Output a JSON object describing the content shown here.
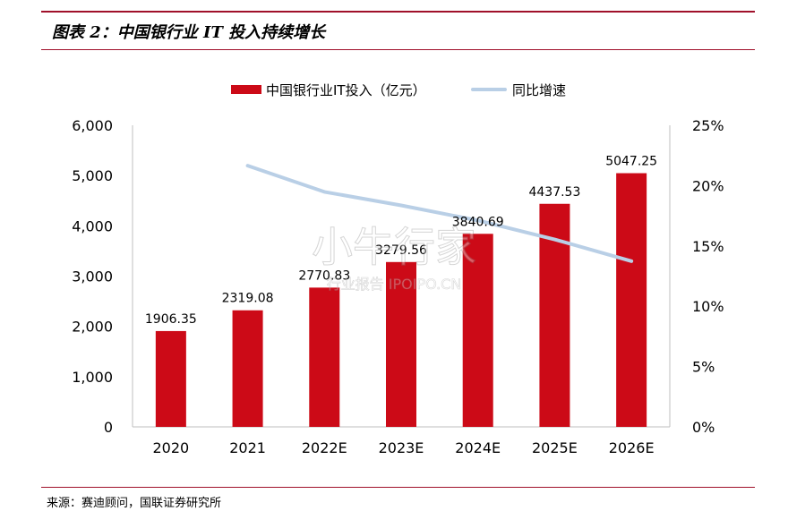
{
  "figure_title": "图表 2：中国银行业 IT 投入持续增长",
  "source_note": "来源：赛迪顾问，国联证券研究所",
  "watermark": {
    "main": "小牛行家",
    "sub": "行业报告 IPOIPO.CN"
  },
  "colors": {
    "bar": "#cc0a17",
    "line": "#b9cfe6",
    "rule": "#a0102a"
  },
  "chart_data": {
    "type": "bar",
    "categories": [
      "2020",
      "2021",
      "2022E",
      "2023E",
      "2024E",
      "2025E",
      "2026E"
    ],
    "series": [
      {
        "name": "中国银行业IT投入（亿元）",
        "type": "bar",
        "axis": "left",
        "values": [
          1906.35,
          2319.08,
          2770.83,
          3279.56,
          3840.69,
          4437.53,
          5047.25
        ],
        "data_labels": [
          "1906.35",
          "2319.08",
          "2770.83",
          "3279.56",
          "3840.69",
          "4437.53",
          "5047.25"
        ]
      },
      {
        "name": "同比增速",
        "type": "line",
        "axis": "right",
        "values": [
          null,
          0.2165,
          0.1948,
          0.1836,
          0.1711,
          0.1554,
          0.1374
        ]
      }
    ],
    "y_left": {
      "min": 0,
      "max": 6000,
      "ticks": [
        "0",
        "1,000",
        "2,000",
        "3,000",
        "4,000",
        "5,000",
        "6,000"
      ]
    },
    "y_right": {
      "min": 0,
      "max": 0.25,
      "ticks": [
        "0%",
        "5%",
        "10%",
        "15%",
        "20%",
        "25%"
      ]
    },
    "legend_position": "top-center",
    "grid": false
  }
}
